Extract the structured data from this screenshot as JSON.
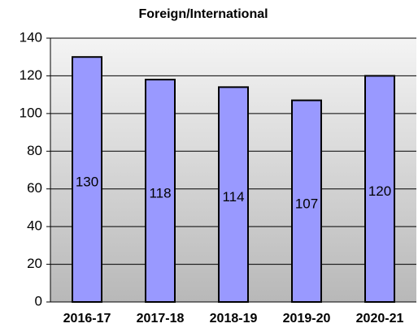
{
  "chart_data": {
    "type": "bar",
    "title": "Foreign/International",
    "categories": [
      "2016-17",
      "2017-18",
      "2018-19",
      "2019-20",
      "2020-21"
    ],
    "values": [
      130,
      118,
      114,
      107,
      120
    ],
    "color": "#9999ff",
    "ylim": [
      0,
      140
    ],
    "yticks": [
      0,
      20,
      40,
      60,
      80,
      100,
      120,
      140
    ],
    "grid": true
  }
}
